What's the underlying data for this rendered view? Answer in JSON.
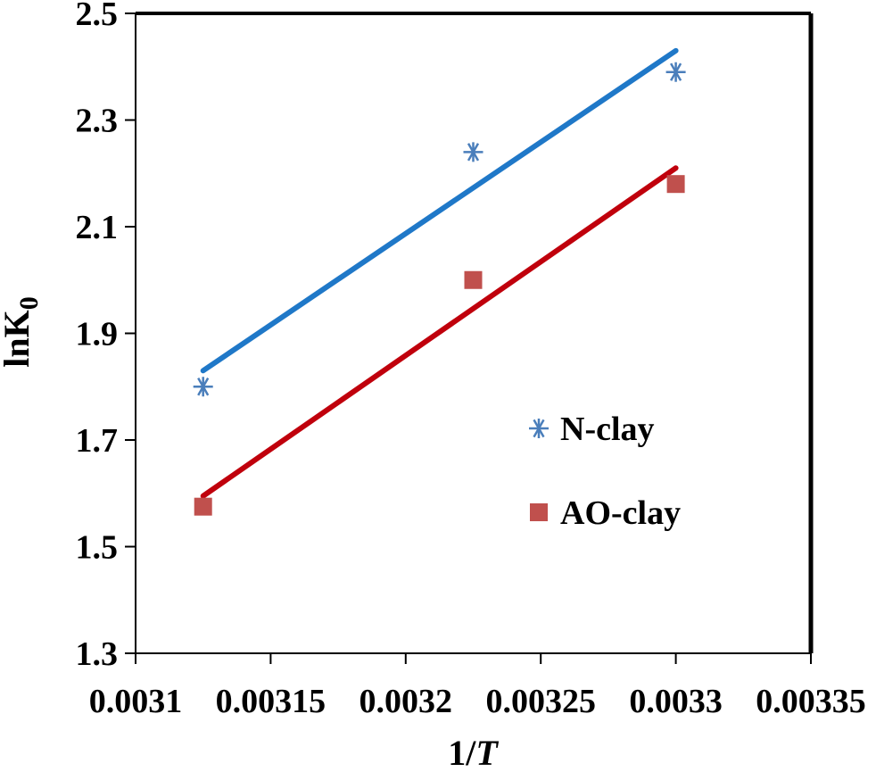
{
  "chart_data": {
    "type": "scatter",
    "title": "",
    "xlabel": {
      "main": "1/",
      "italic": "T"
    },
    "ylabel": {
      "main": "lnK",
      "sub": "0"
    },
    "xlim": [
      0.0031,
      0.00335
    ],
    "ylim": [
      1.3,
      2.5
    ],
    "xticks": [
      0.0031,
      0.00315,
      0.0032,
      0.00325,
      0.0033,
      0.00335
    ],
    "xtick_labels": [
      "0.0031",
      "0.00315",
      "0.0032",
      "0.00325",
      "0.0033",
      "0.00335"
    ],
    "yticks": [
      1.3,
      1.5,
      1.7,
      1.9,
      2.1,
      2.3,
      2.5
    ],
    "ytick_labels": [
      "1.3",
      "1.5",
      "1.7",
      "1.9",
      "2.1",
      "2.3",
      "2.5"
    ],
    "grid": false,
    "legend_position": "center-right",
    "series": [
      {
        "name": "N-clay",
        "marker": "asterisk",
        "color": "#4a7ebb",
        "line_color": "#1f78c8",
        "points": [
          {
            "x": 0.003125,
            "y": 1.8
          },
          {
            "x": 0.003225,
            "y": 2.24
          },
          {
            "x": 0.0033,
            "y": 2.39
          }
        ],
        "trendline": [
          {
            "x": 0.003125,
            "y": 1.83
          },
          {
            "x": 0.0033,
            "y": 2.43
          }
        ]
      },
      {
        "name": "AO-clay",
        "marker": "square",
        "color": "#c0504d",
        "line_color": "#c0000c",
        "points": [
          {
            "x": 0.003125,
            "y": 1.575
          },
          {
            "x": 0.003225,
            "y": 2.0
          },
          {
            "x": 0.0033,
            "y": 2.18
          }
        ],
        "trendline": [
          {
            "x": 0.003125,
            "y": 1.595
          },
          {
            "x": 0.0033,
            "y": 2.21
          }
        ]
      }
    ]
  }
}
